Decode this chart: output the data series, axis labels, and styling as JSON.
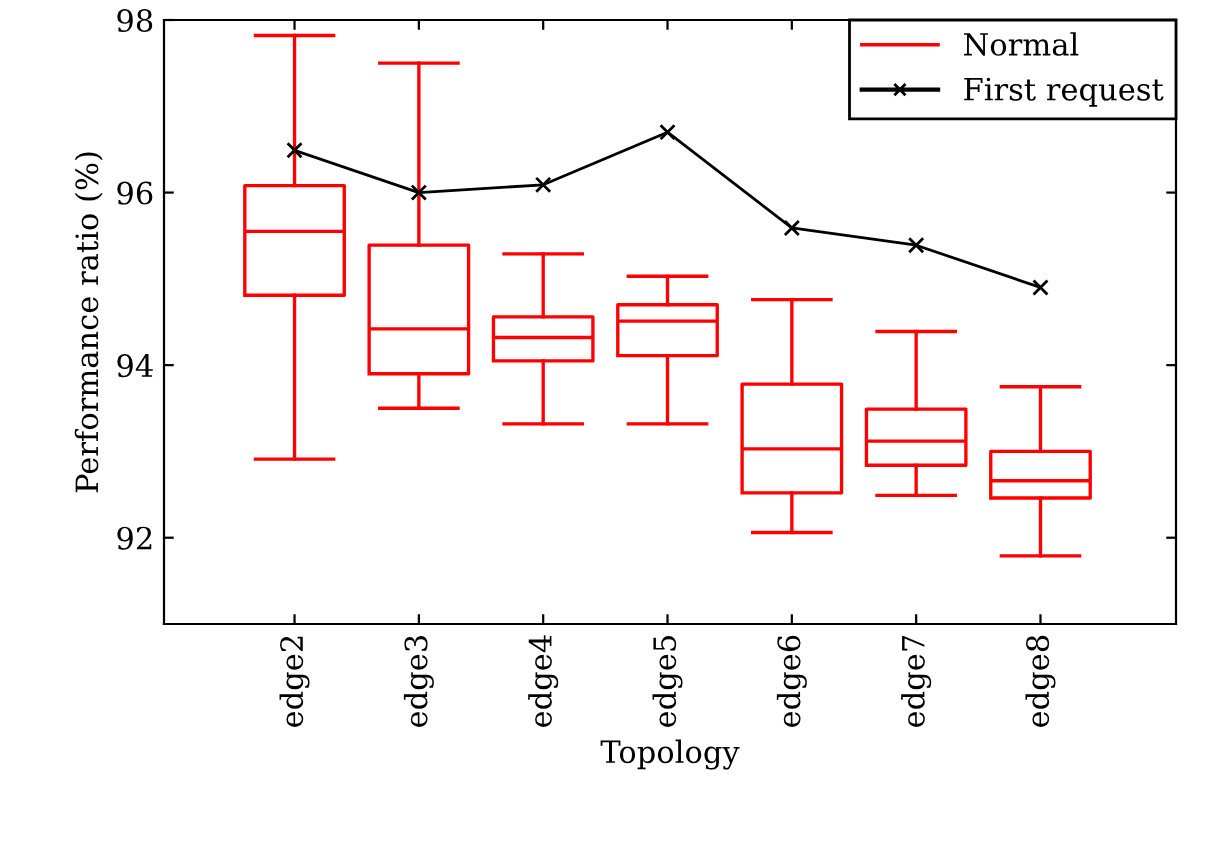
{
  "chart_data": {
    "type": "box",
    "xlabel": "Topology",
    "ylabel": "Performance ratio (%)",
    "categories": [
      "edge2",
      "edge3",
      "edge4",
      "edge5",
      "edge6",
      "edge7",
      "edge8"
    ],
    "ylim": [
      91,
      98
    ],
    "yticks": [
      92,
      94,
      96,
      98
    ],
    "grid": false,
    "legend": "top right",
    "series": [
      {
        "name": "Normal",
        "color": "#ff0000",
        "boxes": [
          {
            "low": 92.91,
            "q1": 94.81,
            "median": 95.55,
            "q3": 96.08,
            "high": 97.82
          },
          {
            "low": 93.5,
            "q1": 93.9,
            "median": 94.42,
            "q3": 95.39,
            "high": 97.5
          },
          {
            "low": 93.32,
            "q1": 94.05,
            "median": 94.32,
            "q3": 94.56,
            "high": 95.29
          },
          {
            "low": 93.32,
            "q1": 94.11,
            "median": 94.51,
            "q3": 94.7,
            "high": 95.03
          },
          {
            "low": 92.06,
            "q1": 92.52,
            "median": 93.03,
            "q3": 93.78,
            "high": 94.76
          },
          {
            "low": 92.49,
            "q1": 92.84,
            "median": 93.12,
            "q3": 93.49,
            "high": 94.39
          },
          {
            "low": 91.79,
            "q1": 92.46,
            "median": 92.66,
            "q3": 93.0,
            "high": 93.75
          }
        ]
      },
      {
        "name": "First request",
        "type": "line",
        "color": "#000000",
        "marker": "cross",
        "line_style": "solid",
        "values": [
          96.49,
          96.0,
          96.09,
          96.7,
          95.59,
          95.39,
          94.9
        ]
      }
    ]
  }
}
